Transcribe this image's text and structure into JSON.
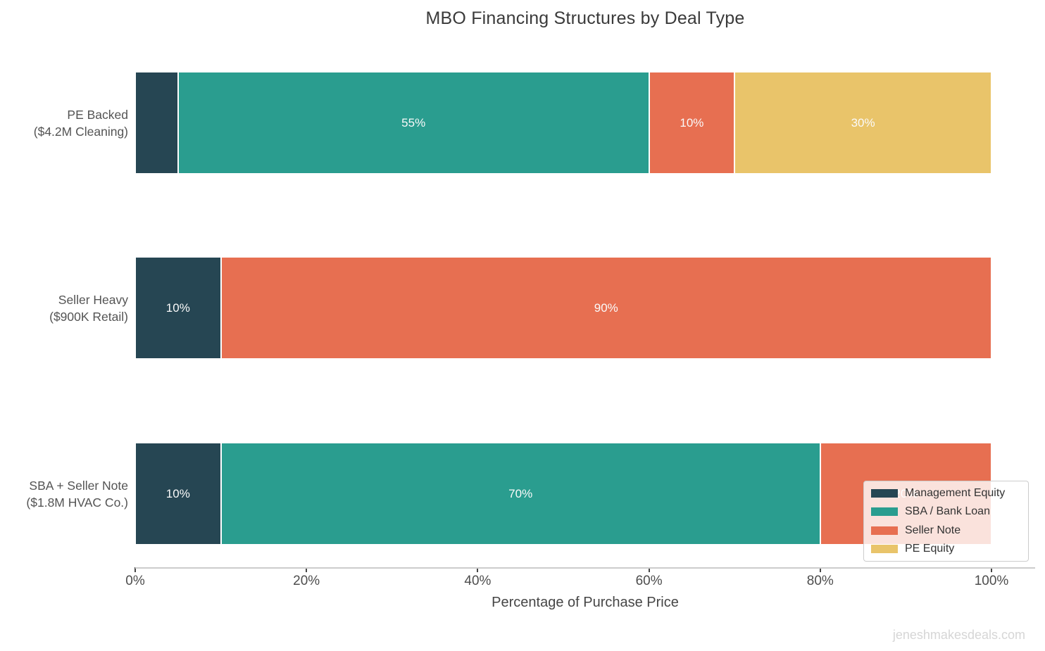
{
  "chart_data": {
    "type": "bar",
    "orientation": "horizontal",
    "stacked": true,
    "title": "MBO Financing Structures by Deal Type",
    "xlabel": "Percentage of Purchase Price",
    "xlim": [
      0,
      100
    ],
    "x_ticks": [
      {
        "value": 0,
        "label": "0%"
      },
      {
        "value": 20,
        "label": "20%"
      },
      {
        "value": 40,
        "label": "40%"
      },
      {
        "value": 60,
        "label": "60%"
      },
      {
        "value": 80,
        "label": "80%"
      },
      {
        "value": 100,
        "label": "100%"
      }
    ],
    "series": [
      {
        "name": "Management Equity",
        "color": "#264653"
      },
      {
        "name": "SBA / Bank Loan",
        "color": "#2a9d8f"
      },
      {
        "name": "Seller Note",
        "color": "#e76f51"
      },
      {
        "name": "PE Equity",
        "color": "#e9c46a"
      }
    ],
    "legend": {
      "position": "lower right",
      "entries": [
        "Management Equity",
        "SBA / Bank Loan",
        "Seller Note",
        "PE Equity"
      ]
    },
    "rows": [
      {
        "category": "PE Backed\n($4.2M Cleaning)",
        "segments": [
          {
            "series": "Management Equity",
            "value": 5,
            "label": ""
          },
          {
            "series": "SBA / Bank Loan",
            "value": 55,
            "label": "55%"
          },
          {
            "series": "Seller Note",
            "value": 10,
            "label": "10%"
          },
          {
            "series": "PE Equity",
            "value": 30,
            "label": "30%"
          }
        ]
      },
      {
        "category": "Seller Heavy\n($900K Retail)",
        "segments": [
          {
            "series": "Management Equity",
            "value": 10,
            "label": "10%"
          },
          {
            "series": "Seller Note",
            "value": 90,
            "label": "90%"
          }
        ]
      },
      {
        "category": "SBA + Seller Note\n($1.8M HVAC Co.)",
        "segments": [
          {
            "series": "Management Equity",
            "value": 10,
            "label": "10%"
          },
          {
            "series": "SBA / Bank Loan",
            "value": 70,
            "label": "70%"
          },
          {
            "series": "Seller Note",
            "value": 20,
            "label": "20%"
          }
        ]
      }
    ]
  },
  "watermark": "jeneshmakesdeals.com",
  "colors": {
    "axis_line": "#cccccc",
    "tick_mark": "#454545",
    "tick_text": "#4d4d4d",
    "title_text": "#3a3a3a",
    "category_text": "#545454",
    "bar_label_text": "#fafafa",
    "watermark_text": "#d6d6d6"
  }
}
